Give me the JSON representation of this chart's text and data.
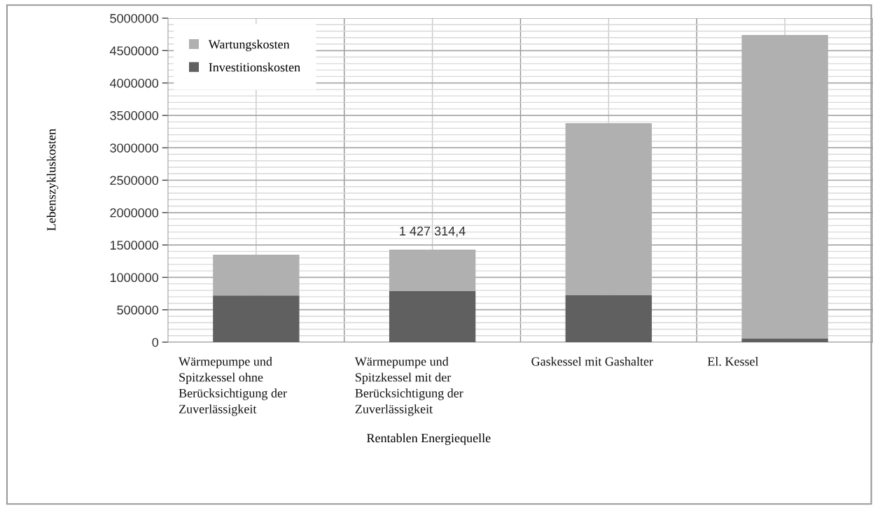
{
  "chart_data": {
    "type": "bar",
    "stacked": true,
    "xlabel": "Rentablen Energiequelle",
    "ylabel": "Lebenszykluskosten",
    "categories": [
      "Wärmepumpe und Spitzkessel ohne Berücksichtigung der Zuverlässigkeit",
      "Wärmepumpe und Spitzkessel mit der Berücksichtigung der Zuverlässigkeit",
      "Gaskessel mit Gashalter",
      "El. Kessel"
    ],
    "series": [
      {
        "name": "Investitionskosten",
        "color": "#606060",
        "values": [
          720000,
          790000,
          730000,
          60000
        ]
      },
      {
        "name": "Wartungskosten",
        "color": "#b0b0b0",
        "values": [
          630000,
          637314.4,
          2650000,
          4680000
        ]
      }
    ],
    "totals": [
      null,
      "1 427 314,4",
      null,
      null
    ],
    "ylim": [
      0,
      5000000
    ],
    "yticks": [
      0,
      500000,
      1000000,
      1500000,
      2000000,
      2500000,
      3000000,
      3500000,
      4000000,
      4500000,
      5000000
    ],
    "grid": true,
    "legend": "top left"
  }
}
